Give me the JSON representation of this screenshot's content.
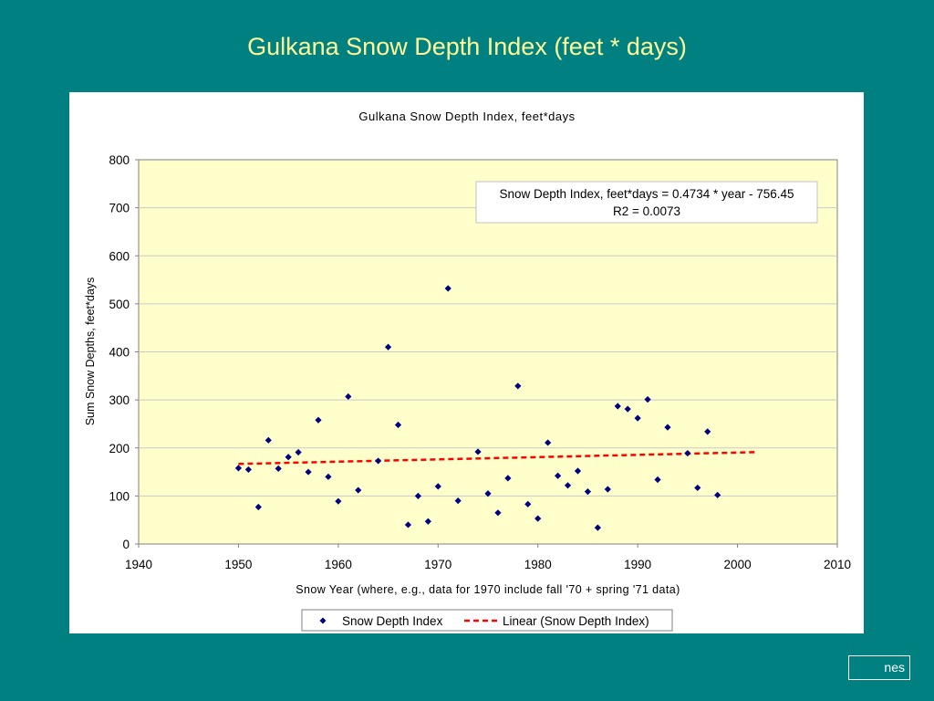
{
  "slide": {
    "title": "Gulkana Snow Depth Index (feet * days)",
    "footer": "nes"
  },
  "colors": {
    "background": "#008080",
    "title": "#ffff99",
    "plot_area": "#ffffcc",
    "marker": "#000080",
    "trendline": "#ff0000"
  },
  "chart_data": {
    "type": "scatter",
    "title": "Gulkana Snow Depth Index, feet*days",
    "xlabel": "Snow Year (where, e.g.,  data for 1970 include fall '70 + spring '71 data)",
    "ylabel": "Sum Snow Depths, feet*days",
    "xlim": [
      1940,
      2010
    ],
    "ylim": [
      0,
      800
    ],
    "xticks": [
      1940,
      1950,
      1960,
      1970,
      1980,
      1990,
      2000,
      2010
    ],
    "yticks": [
      0,
      100,
      200,
      300,
      400,
      500,
      600,
      700,
      800
    ],
    "grid": true,
    "legend_position": "bottom",
    "series": [
      {
        "name": "Snow Depth Index",
        "marker": "diamond",
        "x": [
          1950,
          1951,
          1952,
          1953,
          1954,
          1955,
          1956,
          1957,
          1958,
          1959,
          1960,
          1961,
          1962,
          1964,
          1965,
          1966,
          1967,
          1968,
          1969,
          1970,
          1971,
          1972,
          1974,
          1975,
          1976,
          1977,
          1978,
          1979,
          1980,
          1981,
          1982,
          1983,
          1984,
          1985,
          1986,
          1987,
          1988,
          1989,
          1990,
          1991,
          1992,
          1993,
          1995,
          1996,
          1997,
          1998
        ],
        "y": [
          158,
          155,
          77,
          216,
          157,
          181,
          191,
          150,
          258,
          140,
          89,
          307,
          112,
          173,
          410,
          248,
          40,
          100,
          47,
          120,
          532,
          90,
          192,
          105,
          65,
          137,
          329,
          83,
          53,
          211,
          142,
          122,
          152,
          109,
          34,
          114,
          287,
          281,
          262,
          301,
          134,
          243,
          189,
          117,
          234,
          102
        ]
      },
      {
        "name": "Linear (Snow Depth Index)",
        "type": "trendline",
        "x": [
          1950,
          2002
        ],
        "y": [
          166.68,
          191.3
        ]
      }
    ],
    "annotation": {
      "line1": "Snow Depth Index, feet*days = 0.4734 * year - 756.45",
      "line2": "R2 = 0.0073"
    }
  }
}
